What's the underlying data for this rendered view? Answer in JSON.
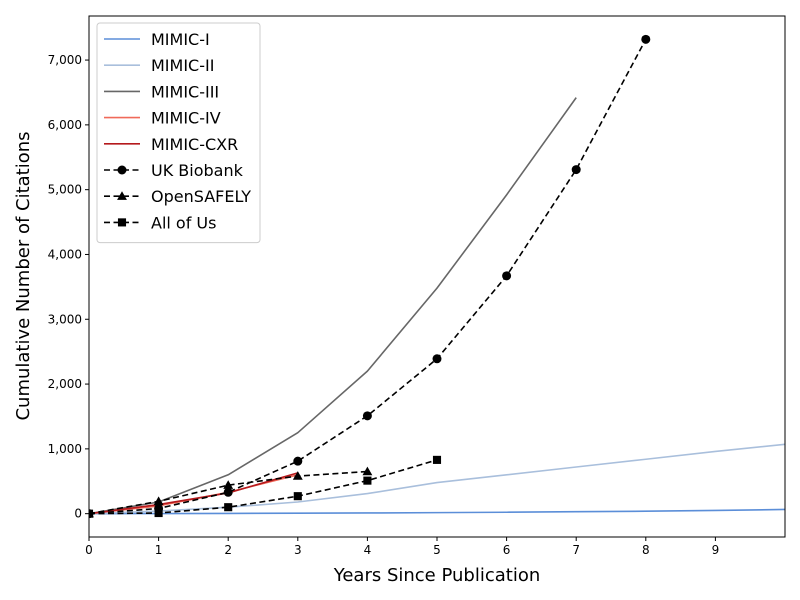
{
  "chart_data": {
    "type": "line",
    "title": "",
    "xlabel": "Years Since Publication",
    "ylabel": "Cumulative Number of Citations",
    "xlim": [
      0,
      10
    ],
    "ylim": [
      -360,
      7680
    ],
    "x_ticks": [
      0,
      1,
      2,
      3,
      4,
      5,
      6,
      7,
      8,
      9
    ],
    "x_tick_labels": [
      "0",
      "1",
      "2",
      "3",
      "4",
      "5",
      "6",
      "7",
      "8",
      "9"
    ],
    "y_ticks": [
      0,
      1000,
      2000,
      3000,
      4000,
      5000,
      6000,
      7000
    ],
    "y_tick_labels": [
      "0",
      "1,000",
      "2,000",
      "3,000",
      "4,000",
      "5,000",
      "6,000",
      "7,000"
    ],
    "grid": false,
    "legend_position": "top-left",
    "series": [
      {
        "name": "MIMIC-I",
        "color": "#5b8ed8",
        "style": "solid",
        "marker": "none",
        "x": [
          0,
          1,
          2,
          3,
          4,
          5,
          6,
          7,
          8,
          9,
          10
        ],
        "y": [
          0,
          2,
          4,
          7,
          11,
          16,
          22,
          30,
          38,
          50,
          65
        ]
      },
      {
        "name": "MIMIC-II",
        "color": "#a9bfdc",
        "style": "solid",
        "marker": "none",
        "x": [
          0,
          1,
          2,
          3,
          4,
          5,
          6,
          7,
          8,
          9,
          10
        ],
        "y": [
          0,
          40,
          100,
          180,
          310,
          480,
          600,
          720,
          840,
          960,
          1070
        ]
      },
      {
        "name": "MIMIC-III",
        "color": "#676767",
        "style": "solid",
        "marker": "none",
        "x": [
          0,
          1,
          2,
          3,
          4,
          5,
          6,
          7
        ],
        "y": [
          0,
          180,
          600,
          1250,
          2200,
          3480,
          4920,
          6420
        ]
      },
      {
        "name": "MIMIC-IV",
        "color": "#f06a5a",
        "style": "solid",
        "marker": "none",
        "x": [
          0,
          1,
          2,
          3
        ],
        "y": [
          0,
          120,
          330,
          600
        ]
      },
      {
        "name": "MIMIC-CXR",
        "color": "#b5191c",
        "style": "solid",
        "marker": "none",
        "x": [
          0,
          1,
          2,
          3
        ],
        "y": [
          0,
          140,
          320,
          630
        ]
      },
      {
        "name": "UK Biobank",
        "color": "#000000",
        "style": "dashed",
        "marker": "circle",
        "x": [
          0,
          1,
          2,
          3,
          4,
          5,
          6,
          7,
          8
        ],
        "y": [
          0,
          80,
          330,
          810,
          1510,
          2390,
          3670,
          5310,
          7320
        ]
      },
      {
        "name": "OpenSAFELY",
        "color": "#000000",
        "style": "dashed",
        "marker": "triangle",
        "x": [
          0,
          1,
          2,
          3,
          4
        ],
        "y": [
          0,
          190,
          440,
          580,
          650
        ]
      },
      {
        "name": "All of Us",
        "color": "#000000",
        "style": "dashed",
        "marker": "square",
        "x": [
          0,
          1,
          2,
          3,
          4,
          5
        ],
        "y": [
          0,
          10,
          100,
          270,
          510,
          830
        ]
      }
    ]
  }
}
